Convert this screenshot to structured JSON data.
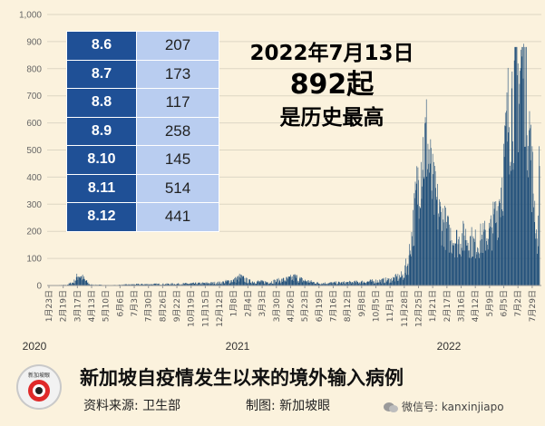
{
  "headline": {
    "line1": "2022年7月13日",
    "line2": "892起",
    "line3": "是历史最高"
  },
  "table": {
    "rows": [
      {
        "date": "8.6",
        "value": "207"
      },
      {
        "date": "8.7",
        "value": "173"
      },
      {
        "date": "8.8",
        "value": "117"
      },
      {
        "date": "8.9",
        "value": "258"
      },
      {
        "date": "8.10",
        "value": "145"
      },
      {
        "date": "8.11",
        "value": "514"
      },
      {
        "date": "8.12",
        "value": "441"
      }
    ]
  },
  "footer": {
    "title": "新加坡自疫情发生以来的境外输入病例",
    "source": "资料来源:  卫生部",
    "maker": "制图:  新加坡眼",
    "logo_text": "新加坡眼",
    "wechat": "微信号: kanxinjiapo"
  },
  "colors": {
    "bar": "#1f4e79",
    "table_date_bg": "#1f5096",
    "table_value_bg": "#b9cdf0",
    "background": "#fbf2dd"
  },
  "chart_data": {
    "type": "bar",
    "title": "新加坡自疫情发生以来的境外输入病例",
    "ylim": [
      0,
      1000
    ],
    "yticks": [
      "0",
      "100",
      "200",
      "300",
      "400",
      "500",
      "600",
      "700",
      "800",
      "900",
      "1,000"
    ],
    "grid": true,
    "xtick_labels": [
      "1月23日",
      "2月19日",
      "3月17日",
      "4月13日",
      "5月10日",
      "6月6日",
      "7月3日",
      "7月30日",
      "8月26日",
      "9月22日",
      "10月19日",
      "11月15日",
      "12月12日",
      "1月8日",
      "2月4日",
      "3月3日",
      "3月30日",
      "4月26日",
      "5月23日",
      "6月19日",
      "7月16日",
      "8月12日",
      "9月8日",
      "10月5日",
      "11月1日",
      "11月28日",
      "12月25日",
      "1月21日",
      "2月17日",
      "3月16日",
      "4月12日",
      "5月9日",
      "6月5日",
      "7月2日",
      "7月29日"
    ],
    "years": [
      "2020",
      "2021",
      "2022"
    ],
    "keypoints": [
      [
        "2020-01-23",
        0
      ],
      [
        "2020-02-25",
        2
      ],
      [
        "2020-03-10",
        12
      ],
      [
        "2020-03-20",
        40
      ],
      [
        "2020-03-28",
        25
      ],
      [
        "2020-04-10",
        3
      ],
      [
        "2020-05-20",
        1
      ],
      [
        "2020-07-01",
        4
      ],
      [
        "2020-08-20",
        5
      ],
      [
        "2020-10-01",
        6
      ],
      [
        "2020-11-15",
        8
      ],
      [
        "2020-12-15",
        10
      ],
      [
        "2021-01-10",
        20
      ],
      [
        "2021-01-20",
        30
      ],
      [
        "2021-02-05",
        15
      ],
      [
        "2021-03-15",
        12
      ],
      [
        "2021-04-20",
        22
      ],
      [
        "2021-05-05",
        30
      ],
      [
        "2021-05-20",
        18
      ],
      [
        "2021-06-20",
        8
      ],
      [
        "2021-08-01",
        10
      ],
      [
        "2021-09-01",
        12
      ],
      [
        "2021-10-01",
        15
      ],
      [
        "2021-11-01",
        20
      ],
      [
        "2021-11-25",
        35
      ],
      [
        "2021-12-05",
        80
      ],
      [
        "2021-12-15",
        220
      ],
      [
        "2021-12-25",
        400
      ],
      [
        "2022-01-02",
        480
      ],
      [
        "2022-01-10",
        540
      ],
      [
        "2022-01-20",
        360
      ],
      [
        "2022-02-01",
        270
      ],
      [
        "2022-02-20",
        190
      ],
      [
        "2022-03-10",
        160
      ],
      [
        "2022-03-25",
        180
      ],
      [
        "2022-04-10",
        150
      ],
      [
        "2022-04-25",
        170
      ],
      [
        "2022-05-10",
        190
      ],
      [
        "2022-05-25",
        280
      ],
      [
        "2022-06-05",
        430
      ],
      [
        "2022-06-15",
        650
      ],
      [
        "2022-06-25",
        720
      ],
      [
        "2022-07-05",
        760
      ],
      [
        "2022-07-13",
        892
      ],
      [
        "2022-07-20",
        700
      ],
      [
        "2022-07-28",
        430
      ],
      [
        "2022-08-06",
        207
      ],
      [
        "2022-08-07",
        173
      ],
      [
        "2022-08-08",
        117
      ],
      [
        "2022-08-09",
        258
      ],
      [
        "2022-08-10",
        145
      ],
      [
        "2022-08-11",
        514
      ],
      [
        "2022-08-12",
        441
      ]
    ],
    "peak": {
      "date": "2022-07-13",
      "value": 892
    }
  }
}
